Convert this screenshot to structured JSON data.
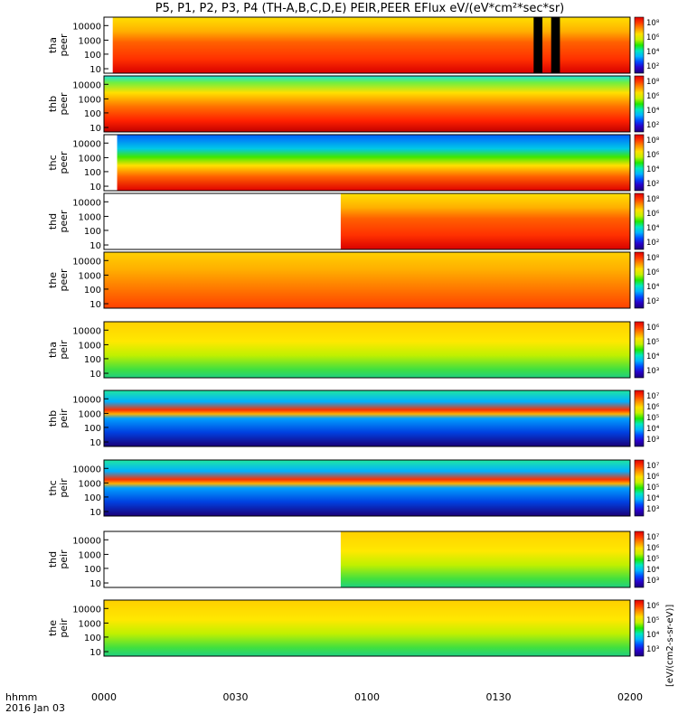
{
  "title": "P5, P1, P2, P3, P4 (TH-A,B,C,D,E) PEIR,PEER EFlux eV/(eV*cm²*sec*sr)",
  "colorbar_colors": [
    "#1a0079",
    "#2900c8",
    "#0048ff",
    "#00b4ff",
    "#00e8c0",
    "#20e800",
    "#c8f000",
    "#ffe000",
    "#ff9000",
    "#ff3a00",
    "#e00000"
  ],
  "time_label": "hhmm",
  "date_label": "2016 Jan 03",
  "x_ticks": [
    "0000",
    "0030",
    "0100",
    "0130",
    "0200"
  ],
  "y_ticks": [
    "10",
    "100",
    "1000",
    "10000"
  ],
  "panels": [
    {
      "sc": "tha",
      "species": "peer",
      "cbar": [
        "10²",
        "10⁴",
        "10⁶",
        "10⁸"
      ]
    },
    {
      "sc": "thb",
      "species": "peer",
      "cbar": [
        "10²",
        "10⁴",
        "10⁶",
        "10⁸"
      ]
    },
    {
      "sc": "thc",
      "species": "peer",
      "cbar": [
        "10²",
        "10⁴",
        "10⁶",
        "10⁸"
      ]
    },
    {
      "sc": "thd",
      "species": "peer",
      "cbar": [
        "10²",
        "10⁴",
        "10⁶",
        "10⁸"
      ]
    },
    {
      "sc": "the",
      "species": "peer",
      "cbar": [
        "10²",
        "10⁴",
        "10⁶",
        "10⁸"
      ]
    },
    {
      "sc": "tha",
      "species": "peir",
      "cbar": [
        "10³",
        "10⁴",
        "10⁵",
        "10⁶"
      ]
    },
    {
      "sc": "thb",
      "species": "peir",
      "cbar": [
        "10³",
        "10⁴",
        "10⁵",
        "10⁶",
        "10⁷"
      ]
    },
    {
      "sc": "thc",
      "species": "peir",
      "cbar": [
        "10³",
        "10⁴",
        "10⁵",
        "10⁶",
        "10⁷"
      ]
    },
    {
      "sc": "thd",
      "species": "peir",
      "cbar": [
        "10³",
        "10⁴",
        "10⁵",
        "10⁶",
        "10⁷"
      ]
    },
    {
      "sc": "the",
      "species": "peir",
      "cbar": [
        "10³",
        "10⁴",
        "10⁵",
        "10⁶"
      ]
    }
  ],
  "colorbar_unit_label": "[eV/(cm2-s-sr-eV)]",
  "chart_data": {
    "type": "heatmap",
    "title": "P5, P1, P2, P3, P4 (TH-A,B,C,D,E) PEIR,PEER EFlux eV/(eV*cm²*sec*sr)",
    "x_range": [
      "0000",
      "0200"
    ],
    "x_unit": "hhmm",
    "y_scale": "log",
    "y_range_eV": [
      5,
      25000
    ],
    "series": [
      {
        "name": "tha peer",
        "data_start": "0002",
        "gaps": [
          [
            "0138",
            "0140"
          ],
          [
            "0142",
            "0144"
          ]
        ]
      },
      {
        "name": "thb peer",
        "data_start": "0000"
      },
      {
        "name": "thc peer",
        "data_start": "0003"
      },
      {
        "name": "thd peer",
        "data_start": "0054"
      },
      {
        "name": "the peer",
        "data_start": "0000"
      },
      {
        "name": "tha peir",
        "data_start": "0000"
      },
      {
        "name": "thb peir",
        "data_start": "0000"
      },
      {
        "name": "thc peir",
        "data_start": "0000"
      },
      {
        "name": "thd peir",
        "data_start": "0054"
      },
      {
        "name": "the peir",
        "data_start": "0000"
      }
    ]
  }
}
